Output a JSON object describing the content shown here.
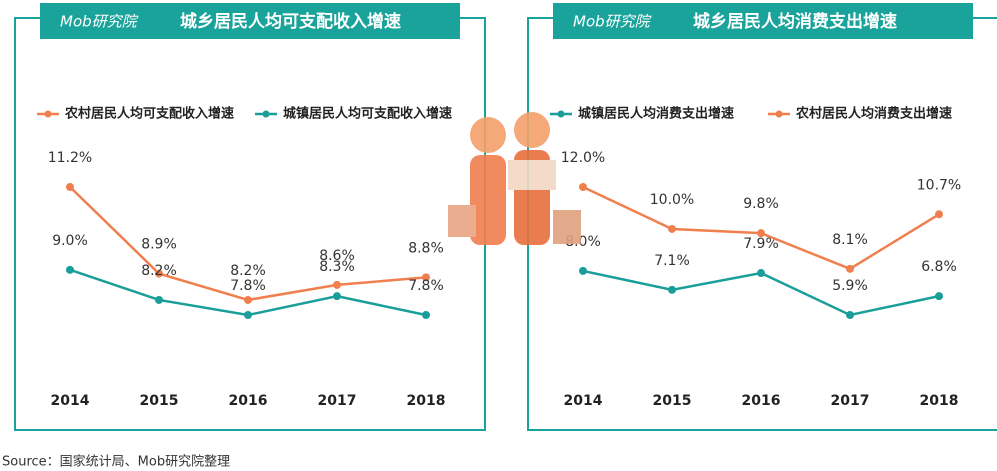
{
  "brand": "Mob研究院",
  "source": "Source：国家统计局、Mob研究院整理",
  "chart_data": [
    {
      "type": "line",
      "title": "城乡居民人均可支配收入增速",
      "categories": [
        "2014",
        "2015",
        "2016",
        "2017",
        "2018"
      ],
      "series": [
        {
          "name": "农村居民人均可支配收入增速",
          "color": "#f07f4e",
          "values": [
            11.2,
            8.9,
            8.2,
            8.6,
            8.8
          ],
          "value_labels": [
            "11.2%",
            "8.9%",
            "8.2%",
            "8.6%",
            "8.8%"
          ]
        },
        {
          "name": "城镇居民人均可支配收入增速",
          "color": "#1a9e9a",
          "values": [
            9.0,
            8.2,
            7.8,
            8.3,
            7.8
          ],
          "value_labels": [
            "9.0%",
            "8.2%",
            "7.8%",
            "8.3%",
            "7.8%"
          ]
        }
      ]
    },
    {
      "type": "line",
      "title": "城乡居民人均消费支出增速",
      "categories": [
        "2014",
        "2015",
        "2016",
        "2017",
        "2018"
      ],
      "series": [
        {
          "name": "城镇居民人均消费支出增速",
          "color": "#1a9e9a",
          "values": [
            8.0,
            7.1,
            7.9,
            5.9,
            6.8
          ],
          "value_labels": [
            "8.0%",
            "7.1%",
            "7.9%",
            "5.9%",
            "6.8%"
          ]
        },
        {
          "name": "农村居民人均消费支出增速",
          "color": "#f07f4e",
          "values": [
            12.0,
            10.0,
            9.8,
            8.1,
            10.7
          ],
          "value_labels": [
            "12.0%",
            "10.0%",
            "9.8%",
            "8.1%",
            "10.7%"
          ]
        }
      ]
    }
  ]
}
